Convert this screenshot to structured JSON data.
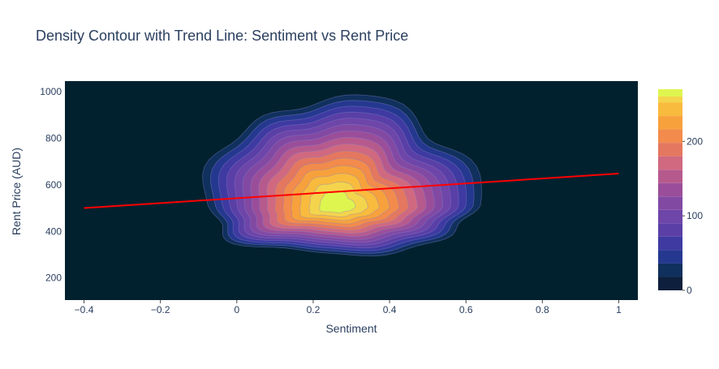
{
  "chart_data": {
    "type": "contour",
    "title": "Density Contour with Trend Line: Sentiment vs Rent Price",
    "xlabel": "Sentiment",
    "ylabel": "Rent Price (AUD)",
    "xlim": [
      -0.45,
      1.05
    ],
    "ylim": [
      105,
      1045
    ],
    "x_ticks": [
      -0.4,
      -0.2,
      0,
      0.2,
      0.4,
      0.6,
      0.8,
      1
    ],
    "x_tick_labels": [
      "−0.4",
      "−0.2",
      "0",
      "0.2",
      "0.4",
      "0.6",
      "0.8",
      "1"
    ],
    "y_ticks": [
      200,
      400,
      600,
      800,
      1000
    ],
    "y_tick_labels": [
      "200",
      "400",
      "600",
      "800",
      "1000"
    ],
    "grid": false,
    "background_color": "#01212f",
    "density": {
      "peak": {
        "x": 0.26,
        "y": 510
      },
      "max_value": 270,
      "outer_extent": {
        "x": [
          -0.07,
          0.63
        ],
        "y": [
          305,
          965
        ]
      }
    },
    "trend_line": {
      "color": "#ff0000",
      "points": [
        {
          "x": -0.4,
          "y": 500
        },
        {
          "x": 1.0,
          "y": 648
        }
      ]
    },
    "colorbar": {
      "min": 0,
      "max": 270,
      "levels": [
        0,
        18,
        36,
        54,
        72,
        90,
        108,
        126,
        144,
        162,
        180,
        198,
        216,
        234,
        252,
        270
      ],
      "colors": [
        "#0d1f3c",
        "#10305d",
        "#25388f",
        "#3e3aa1",
        "#5a3fa6",
        "#6e45a8",
        "#8249a3",
        "#9a4e9a",
        "#b65a8e",
        "#d06980",
        "#e4775f",
        "#f28b4c",
        "#f7a13d",
        "#f9bb3e",
        "#f4d44c",
        "#dff54f"
      ],
      "ticks": [
        0,
        100,
        200
      ],
      "tick_labels": [
        "0",
        "100",
        "200"
      ]
    }
  }
}
